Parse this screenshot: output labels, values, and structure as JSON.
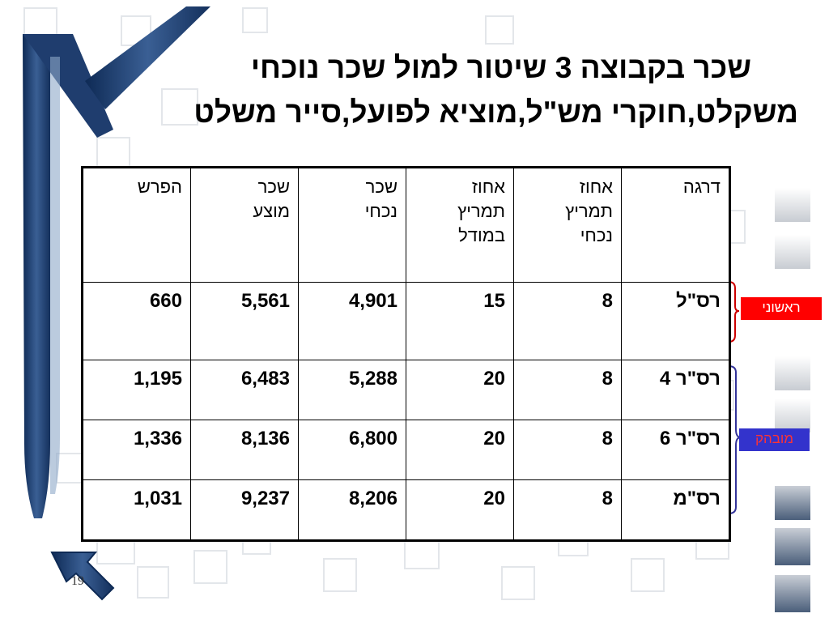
{
  "slide": {
    "title_line1": "שכר בקבוצה 3 שיטור למול שכר נוכחי",
    "title_line2": "משקלט,חוקרי מש\"ל,מוציא לפועל,סייר משלט",
    "page_number": "19"
  },
  "table": {
    "headers": [
      [
        "דרגה"
      ],
      [
        "אחוז",
        "תמריץ",
        "נכחי"
      ],
      [
        "אחוז",
        "תמריץ",
        "במודל"
      ],
      [
        "שכר",
        "נכחי"
      ],
      [
        "שכר",
        "מוצע"
      ],
      [
        "הפרש"
      ]
    ],
    "rows": [
      [
        "רס\"ל",
        "8",
        "15",
        "4,901",
        "5,561",
        "660"
      ],
      [
        "רס\"ר 4",
        "8",
        "20",
        "5,288",
        "6,483",
        "1,195"
      ],
      [
        "רס\"ר 6",
        "8",
        "20",
        "6,800",
        "8,136",
        "1,336"
      ],
      [
        "רס\"מ",
        "8",
        "20",
        "8,206",
        "9,237",
        "1,031"
      ]
    ]
  },
  "labels": {
    "first": "ראשוני",
    "senior": "מובהק"
  },
  "colors": {
    "first_label_bg": "#ff0000",
    "senior_label_bg": "#3333cc",
    "brace": "#333399",
    "brace_first": "#cc0000",
    "accent_frame": "#1f3d6e"
  }
}
